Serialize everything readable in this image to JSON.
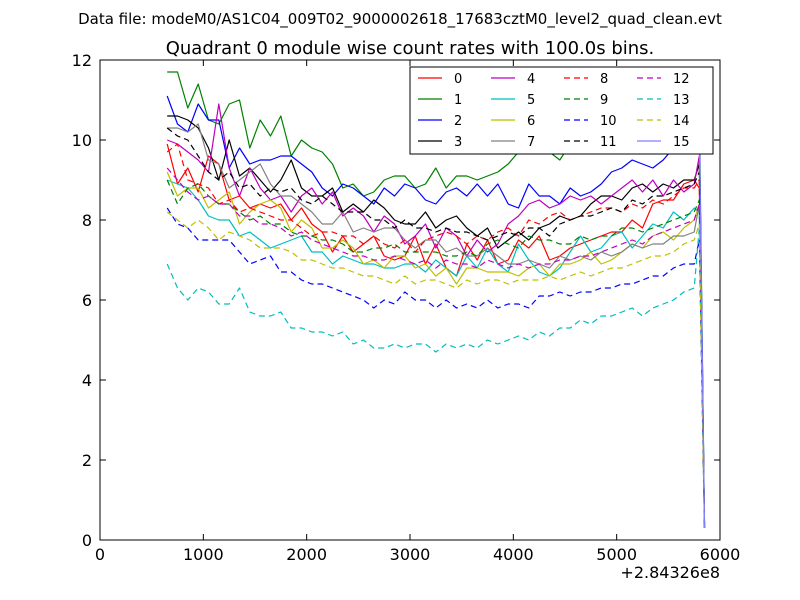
{
  "chart_data": {
    "type": "line",
    "suptitle": "Data file: modeM0/AS1C04_009T02_9000002618_17683cztM0_level2_quad_clean.evt",
    "title": "Quadrant 0 module wise count rates with 100.0s bins.",
    "xlabel": "",
    "ylabel": "",
    "x_offset_label": "+2.84326e8",
    "xlim": [
      0,
      6000
    ],
    "ylim": [
      0,
      12
    ],
    "x_ticks": [
      "0",
      "1000",
      "2000",
      "3000",
      "4000",
      "5000",
      "6000"
    ],
    "y_ticks": [
      "0",
      "2",
      "4",
      "6",
      "8",
      "10",
      "12"
    ],
    "grid": false,
    "legend_position": "top-right",
    "x": [
      650,
      750,
      850,
      950,
      1050,
      1150,
      1250,
      1350,
      1450,
      1550,
      1650,
      1750,
      1850,
      1950,
      2050,
      2150,
      2250,
      2350,
      2450,
      2550,
      2650,
      2750,
      2850,
      2950,
      3050,
      3150,
      3250,
      3350,
      3450,
      3550,
      3650,
      3750,
      3850,
      3950,
      4050,
      4150,
      4250,
      4350,
      4450,
      4550,
      4650,
      4750,
      4850,
      4950,
      5050,
      5150,
      5250,
      5350,
      5450,
      5550,
      5650,
      5750,
      5800,
      5850
    ],
    "series": [
      {
        "name": "0",
        "color": "#ff0000",
        "dash": "solid",
        "values": [
          9.9,
          8.9,
          9.3,
          8.7,
          9.6,
          9.4,
          8.5,
          8.6,
          8.3,
          8.4,
          8.3,
          8.4,
          8.0,
          8.3,
          7.9,
          7.7,
          7.2,
          7.6,
          7.2,
          7.4,
          7.6,
          7.1,
          7.0,
          7.1,
          7.6,
          6.9,
          7.4,
          6.8,
          6.6,
          7.4,
          7.0,
          7.5,
          6.9,
          7.0,
          7.5,
          7.3,
          7.6,
          7.0,
          7.1,
          7.3,
          7.4,
          7.5,
          7.6,
          7.7,
          7.7,
          8.0,
          7.8,
          8.4,
          8.5,
          8.5,
          8.9,
          9.0,
          8.8,
          0.3
        ]
      },
      {
        "name": "1",
        "color": "#008000",
        "dash": "solid",
        "values": [
          11.7,
          11.7,
          10.8,
          11.4,
          10.5,
          10.4,
          10.9,
          11.0,
          9.8,
          10.5,
          10.1,
          10.6,
          9.6,
          10.0,
          9.8,
          9.7,
          9.4,
          8.8,
          8.9,
          8.6,
          8.7,
          9.0,
          9.1,
          9.1,
          8.8,
          8.9,
          9.3,
          8.8,
          9.1,
          9.1,
          9.0,
          9.1,
          9.2,
          9.4,
          9.7,
          9.8,
          9.9,
          9.7,
          9.5,
          9.9,
          10.2,
          10.3,
          10.4,
          10.2,
          10.4,
          10.5,
          10.0,
          10.2,
          10.5,
          9.8,
          10.0,
          10.1,
          10.8,
          0.4
        ]
      },
      {
        "name": "2",
        "color": "#0000ff",
        "dash": "solid",
        "values": [
          11.1,
          10.4,
          10.2,
          10.9,
          10.5,
          10.5,
          9.3,
          9.8,
          9.4,
          9.5,
          9.5,
          9.6,
          9.6,
          9.4,
          9.2,
          8.8,
          8.6,
          8.9,
          8.8,
          8.6,
          8.4,
          8.8,
          8.6,
          8.9,
          8.8,
          8.5,
          8.4,
          8.7,
          8.8,
          8.6,
          8.9,
          8.6,
          8.9,
          8.4,
          8.3,
          8.9,
          8.6,
          8.6,
          8.4,
          8.8,
          8.6,
          8.7,
          8.9,
          9.2,
          9.3,
          9.5,
          9.4,
          9.3,
          9.5,
          9.8,
          9.8,
          9.9,
          10.4,
          0.3
        ]
      },
      {
        "name": "3",
        "color": "#000000",
        "dash": "solid",
        "values": [
          10.6,
          10.6,
          10.5,
          10.3,
          9.8,
          9.0,
          10.0,
          9.1,
          9.3,
          9.0,
          8.7,
          9.0,
          9.5,
          8.8,
          8.6,
          8.6,
          8.8,
          8.2,
          8.4,
          8.2,
          8.5,
          8.3,
          8.0,
          7.9,
          7.9,
          8.2,
          7.8,
          8.0,
          8.1,
          7.8,
          7.6,
          7.8,
          7.3,
          7.5,
          7.7,
          7.5,
          7.8,
          7.9,
          8.1,
          8.0,
          8.1,
          8.4,
          8.6,
          8.6,
          8.5,
          8.8,
          8.9,
          8.7,
          8.9,
          8.8,
          9.0,
          9.0,
          9.4,
          0.3
        ]
      },
      {
        "name": "4",
        "color": "#bf00bf",
        "dash": "solid",
        "values": [
          10.0,
          9.9,
          9.7,
          9.5,
          9.2,
          10.9,
          9.3,
          8.6,
          9.3,
          8.8,
          8.5,
          8.6,
          8.2,
          8.6,
          8.8,
          8.4,
          8.7,
          8.1,
          8.3,
          8.1,
          7.7,
          8.1,
          7.9,
          7.4,
          7.6,
          7.9,
          7.3,
          7.8,
          7.6,
          7.1,
          7.5,
          7.2,
          7.4,
          7.9,
          8.1,
          8.4,
          8.5,
          8.3,
          8.4,
          8.6,
          8.5,
          8.6,
          8.4,
          8.6,
          8.8,
          9.0,
          8.7,
          9.0,
          8.6,
          9.0,
          8.7,
          8.9,
          9.6,
          0.3
        ]
      },
      {
        "name": "5",
        "color": "#00bfbf",
        "dash": "solid",
        "values": [
          9.0,
          8.9,
          8.8,
          8.5,
          8.1,
          8.0,
          8.0,
          7.6,
          7.7,
          7.5,
          7.3,
          7.4,
          7.5,
          7.6,
          7.2,
          7.2,
          6.9,
          7.1,
          7.0,
          6.9,
          6.9,
          6.8,
          6.8,
          6.9,
          6.9,
          6.7,
          7.0,
          6.8,
          6.6,
          7.1,
          6.8,
          7.3,
          6.9,
          6.7,
          7.4,
          7.0,
          6.7,
          6.6,
          6.8,
          7.2,
          7.6,
          7.2,
          7.3,
          7.6,
          7.7,
          7.3,
          7.6,
          7.9,
          7.8,
          8.2,
          8.0,
          8.3,
          8.2,
          0.4
        ]
      },
      {
        "name": "6",
        "color": "#bfbf00",
        "dash": "solid",
        "values": [
          9.2,
          8.6,
          8.8,
          8.8,
          8.3,
          8.5,
          8.7,
          7.9,
          8.2,
          8.4,
          8.5,
          8.3,
          7.7,
          8.0,
          7.8,
          7.3,
          7.3,
          7.5,
          7.3,
          6.9,
          7.0,
          6.8,
          7.1,
          7.1,
          6.8,
          6.9,
          6.6,
          6.8,
          6.4,
          6.8,
          6.8,
          6.7,
          6.7,
          6.7,
          6.6,
          6.8,
          6.9,
          6.6,
          6.9,
          6.9,
          7.0,
          7.2,
          6.9,
          7.0,
          7.2,
          7.4,
          7.3,
          7.6,
          7.7,
          7.5,
          7.8,
          8.0,
          8.4,
          0.4
        ]
      },
      {
        "name": "7",
        "color": "#808080",
        "dash": "solid",
        "values": [
          10.3,
          10.3,
          10.2,
          10.4,
          9.5,
          9.4,
          8.8,
          9.0,
          9.2,
          9.4,
          8.9,
          8.6,
          8.6,
          8.4,
          8.2,
          7.9,
          7.9,
          8.2,
          7.7,
          7.8,
          7.7,
          7.8,
          7.8,
          7.5,
          7.3,
          7.5,
          7.5,
          7.2,
          7.3,
          7.1,
          7.1,
          7.3,
          7.1,
          6.9,
          6.9,
          7.0,
          6.9,
          6.8,
          7.1,
          7.0,
          7.1,
          7.0,
          7.2,
          7.1,
          7.2,
          7.4,
          7.3,
          7.4,
          7.4,
          7.6,
          7.6,
          7.7,
          8.4,
          0.3
        ]
      },
      {
        "name": "8",
        "color": "#ff0000",
        "dash": "dashed",
        "values": [
          9.7,
          9.9,
          9.0,
          8.9,
          8.8,
          8.4,
          8.5,
          8.2,
          8.3,
          8.2,
          8.1,
          8.0,
          8.0,
          7.8,
          7.6,
          7.7,
          7.7,
          7.6,
          7.6,
          7.4,
          7.6,
          7.4,
          7.3,
          7.5,
          7.2,
          7.5,
          7.6,
          7.7,
          7.6,
          7.4,
          7.6,
          7.5,
          7.7,
          7.8,
          7.6,
          8.0,
          7.9,
          8.1,
          8.2,
          8.0,
          8.1,
          8.2,
          8.3,
          8.3,
          8.2,
          8.4,
          8.3,
          8.5,
          8.4,
          8.6,
          8.8,
          8.8,
          9.0,
          0.3
        ]
      },
      {
        "name": "9",
        "color": "#008000",
        "dash": "dashed",
        "values": [
          9.0,
          8.4,
          8.8,
          8.9,
          8.6,
          8.4,
          8.4,
          8.2,
          8.0,
          8.1,
          7.9,
          7.9,
          7.7,
          7.6,
          7.6,
          7.5,
          7.5,
          7.4,
          7.2,
          7.2,
          7.3,
          7.3,
          7.4,
          7.2,
          7.2,
          7.2,
          7.2,
          7.1,
          7.1,
          7.2,
          7.1,
          7.4,
          7.5,
          7.4,
          7.3,
          7.6,
          7.5,
          7.5,
          7.4,
          7.4,
          7.6,
          7.5,
          7.6,
          7.6,
          7.8,
          7.8,
          7.7,
          7.8,
          7.9,
          8.0,
          8.1,
          8.2,
          8.5,
          0.4
        ]
      },
      {
        "name": "10",
        "color": "#0000ff",
        "dash": "dashed",
        "values": [
          8.3,
          7.9,
          7.8,
          7.5,
          7.5,
          7.5,
          7.5,
          7.2,
          6.9,
          7.0,
          7.1,
          6.7,
          6.7,
          6.5,
          6.4,
          6.4,
          6.3,
          6.2,
          6.1,
          6.0,
          5.8,
          6.0,
          5.9,
          6.2,
          6.0,
          6.0,
          5.8,
          6.0,
          5.8,
          5.9,
          5.8,
          6.0,
          5.8,
          5.9,
          5.9,
          5.8,
          6.1,
          6.1,
          6.2,
          6.1,
          6.2,
          6.2,
          6.3,
          6.3,
          6.4,
          6.4,
          6.5,
          6.6,
          6.6,
          6.8,
          6.9,
          6.9,
          7.5,
          0.3
        ]
      },
      {
        "name": "11",
        "color": "#000000",
        "dash": "dashed",
        "values": [
          10.3,
          10.1,
          10.0,
          9.6,
          9.2,
          9.0,
          9.2,
          8.8,
          8.9,
          8.6,
          8.8,
          8.7,
          8.8,
          8.5,
          8.4,
          8.6,
          8.4,
          8.2,
          8.2,
          8.2,
          8.0,
          8.0,
          7.8,
          8.0,
          7.8,
          7.8,
          7.7,
          7.8,
          7.7,
          7.7,
          7.6,
          7.5,
          7.6,
          7.7,
          7.6,
          7.8,
          7.8,
          7.6,
          7.9,
          8.0,
          8.1,
          8.1,
          8.2,
          8.3,
          8.2,
          8.5,
          8.4,
          8.6,
          8.6,
          8.7,
          8.8,
          8.9,
          9.2,
          0.3
        ]
      },
      {
        "name": "12",
        "color": "#bf00bf",
        "dash": "dashed",
        "values": [
          9.3,
          9.0,
          8.7,
          8.5,
          8.6,
          8.4,
          8.4,
          8.1,
          8.1,
          7.9,
          7.9,
          7.8,
          7.6,
          7.7,
          7.5,
          7.4,
          7.3,
          7.2,
          7.1,
          7.1,
          7.0,
          7.0,
          7.1,
          7.0,
          6.9,
          7.0,
          6.8,
          7.0,
          6.9,
          6.9,
          6.8,
          7.0,
          6.9,
          6.8,
          6.9,
          6.8,
          6.9,
          6.9,
          7.0,
          7.0,
          7.1,
          7.1,
          7.2,
          7.3,
          7.4,
          7.5,
          7.4,
          7.6,
          7.7,
          7.8,
          7.9,
          8.0,
          8.4,
          0.3
        ]
      },
      {
        "name": "13",
        "color": "#00bfbf",
        "dash": "dashed",
        "values": [
          6.9,
          6.3,
          6.0,
          6.3,
          6.2,
          5.9,
          5.9,
          6.3,
          5.7,
          5.6,
          5.6,
          5.7,
          5.3,
          5.3,
          5.2,
          5.2,
          5.1,
          5.2,
          4.9,
          5.0,
          4.8,
          4.8,
          4.9,
          4.8,
          4.9,
          4.9,
          4.7,
          4.9,
          4.8,
          4.9,
          4.8,
          5.0,
          4.9,
          5.0,
          5.1,
          5.0,
          5.2,
          5.1,
          5.3,
          5.3,
          5.5,
          5.4,
          5.6,
          5.6,
          5.7,
          5.8,
          5.6,
          5.8,
          5.9,
          6.0,
          6.2,
          6.3,
          7.8,
          0.3
        ]
      },
      {
        "name": "14",
        "color": "#bfbf00",
        "dash": "dashed",
        "values": [
          8.2,
          8.0,
          7.8,
          8.0,
          7.8,
          7.5,
          7.7,
          7.6,
          7.5,
          7.3,
          7.3,
          7.3,
          7.2,
          7.0,
          7.0,
          6.9,
          6.8,
          6.8,
          6.7,
          6.6,
          6.6,
          6.5,
          6.4,
          6.6,
          6.4,
          6.5,
          6.5,
          6.4,
          6.3,
          6.5,
          6.4,
          6.5,
          6.5,
          6.4,
          6.5,
          6.5,
          6.5,
          6.6,
          6.5,
          6.6,
          6.7,
          6.6,
          6.7,
          6.8,
          6.8,
          6.9,
          7.0,
          7.1,
          7.1,
          7.2,
          7.4,
          7.5,
          7.9,
          0.3
        ]
      },
      {
        "name": "15",
        "color": "#7f7fff",
        "dash": "solid",
        "values": [
          null,
          null,
          null,
          null,
          null,
          null,
          null,
          null,
          null,
          null,
          null,
          null,
          null,
          null,
          null,
          null,
          null,
          null,
          null,
          null,
          null,
          null,
          null,
          null,
          null,
          null,
          null,
          null,
          null,
          null,
          null,
          null,
          null,
          null,
          null,
          null,
          null,
          null,
          null,
          null,
          null,
          null,
          null,
          null,
          null,
          null,
          null,
          10.1,
          10.0,
          9.8,
          9.8,
          9.9,
          10.3,
          0.3
        ]
      }
    ]
  }
}
